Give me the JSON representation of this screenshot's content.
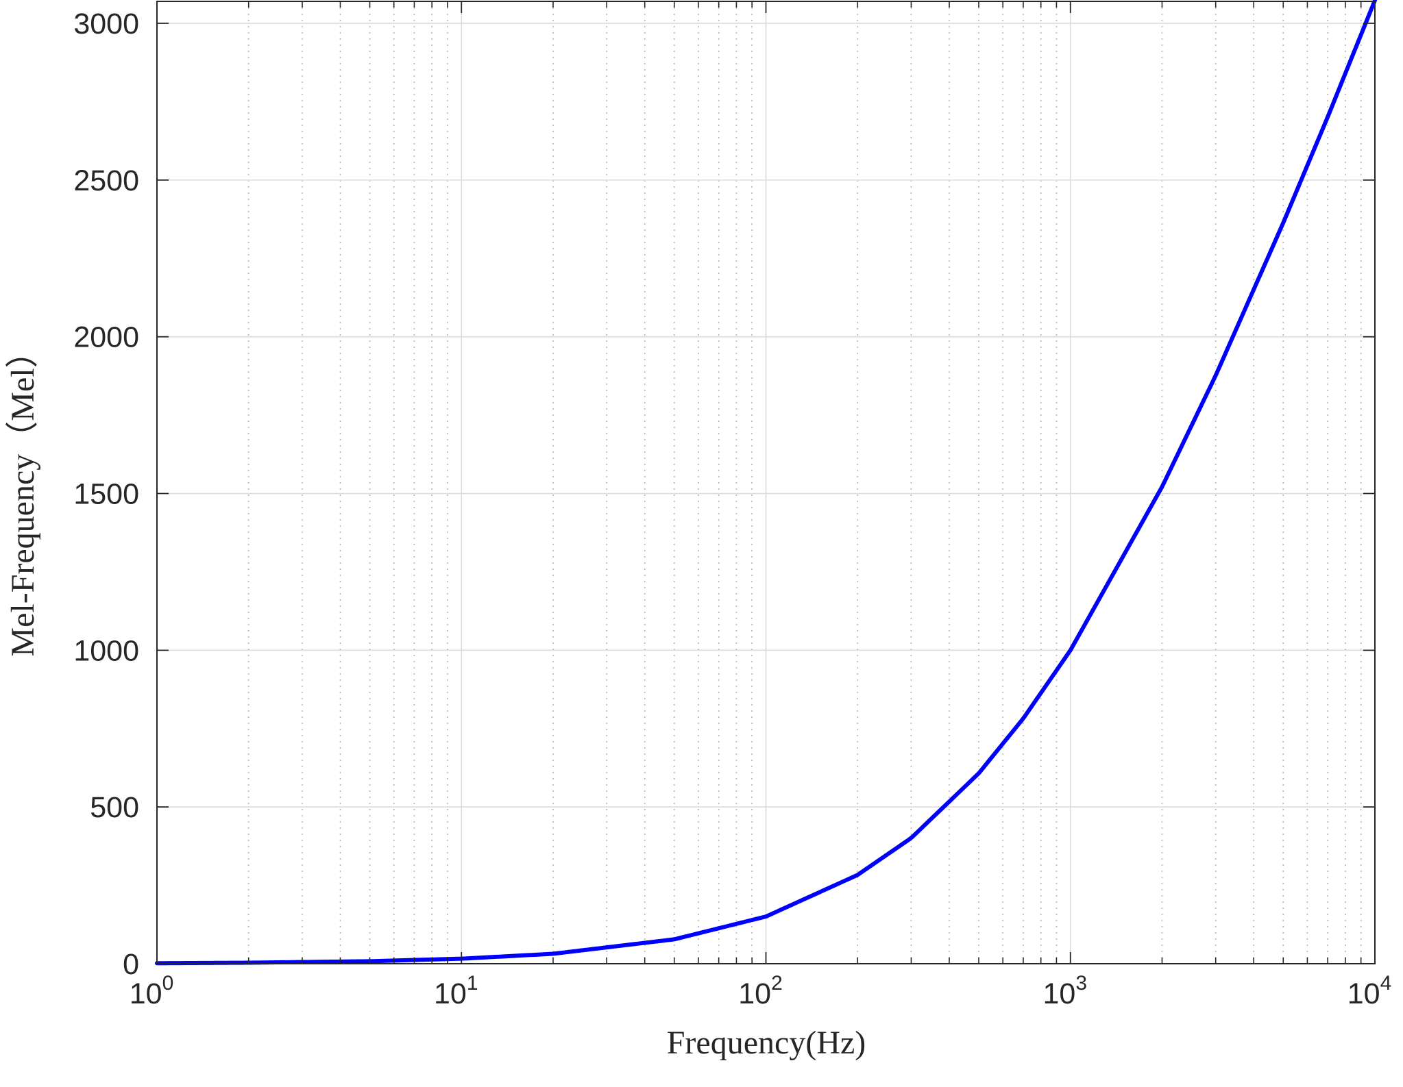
{
  "chart_data": {
    "type": "line",
    "title": "",
    "xlabel": "Frequency(Hz)",
    "ylabel": "Mel-Frequency（Mel）",
    "xscale": "log",
    "xlim": [
      1,
      10000
    ],
    "ylim": [
      0,
      3070
    ],
    "grid": true,
    "legend": "none",
    "x_ticks": [
      {
        "value": 1,
        "base": "10",
        "exp": "0"
      },
      {
        "value": 10,
        "base": "10",
        "exp": "1"
      },
      {
        "value": 100,
        "base": "10",
        "exp": "2"
      },
      {
        "value": 1000,
        "base": "10",
        "exp": "3"
      },
      {
        "value": 10000,
        "base": "10",
        "exp": "4"
      }
    ],
    "y_ticks": [
      "0",
      "500",
      "1000",
      "1500",
      "2000",
      "2500",
      "3000"
    ],
    "series": [
      {
        "color": "#0000ff",
        "x": [
          1,
          2,
          5,
          10,
          20,
          50,
          100,
          200,
          300,
          500,
          700,
          1000,
          2000,
          3000,
          5000,
          7000,
          10000
        ],
        "y": [
          1.6,
          3.2,
          8.0,
          16.0,
          31.7,
          77.8,
          150.5,
          283.2,
          401.0,
          607.4,
          782.2,
          999.9,
          1521.4,
          1876.5,
          2363.5,
          2701.4,
          3073.2
        ]
      }
    ]
  },
  "colors": {
    "line": "#0000ff",
    "major_grid": "#dcdcdc",
    "minor_grid": "#b4b4b4",
    "axes": "#262626"
  }
}
